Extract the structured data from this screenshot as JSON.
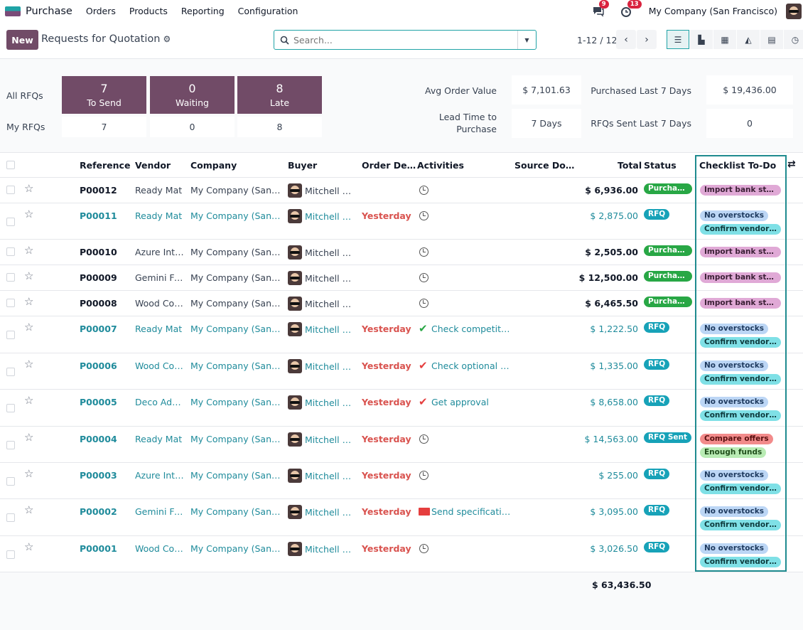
{
  "nav": {
    "app": "Purchase",
    "menus": [
      "Orders",
      "Products",
      "Reporting",
      "Configuration"
    ],
    "messages_count": "9",
    "activities_count": "13",
    "company": "My Company (San Francisco)"
  },
  "cp": {
    "new_label": "New",
    "title": "Requests for Quotation",
    "search_placeholder": "Search...",
    "pager": "1-12 / 12"
  },
  "dash": {
    "all_label": "All RFQs",
    "my_label": "My RFQs",
    "tiles": [
      {
        "n": "7",
        "label": "To Send",
        "mine": "7"
      },
      {
        "n": "0",
        "label": "Waiting",
        "mine": "0"
      },
      {
        "n": "8",
        "label": "Late",
        "mine": "8"
      }
    ],
    "avg_label": "Avg Order Value",
    "avg_value": "$ 7,101.63",
    "lead_label": "Lead Time to Purchase",
    "lead_value": "7 Days",
    "purch_label": "Purchased Last 7 Days",
    "purch_value": "$ 19,436.00",
    "sent_label": "RFQs Sent Last 7 Days",
    "sent_value": "0"
  },
  "columns": {
    "reference": "Reference",
    "vendor": "Vendor",
    "company": "Company",
    "buyer": "Buyer",
    "order_deadline": "Order De…",
    "activities": "Activities",
    "source": "Source Do…",
    "total": "Total",
    "status": "Status",
    "checklist": "Checklist To-Do"
  },
  "rows": [
    {
      "ref": "P00012",
      "vendor": "Ready Mat",
      "company": "My Company (San Fr…",
      "buyer": "Mitchell A…",
      "deadline": "",
      "activity": "",
      "total": "$ 6,936.00",
      "status": "Purchas…",
      "tags": [
        "Import bank state…"
      ]
    },
    {
      "ref": "P00011",
      "vendor": "Ready Mat",
      "company": "My Company (San Fr…",
      "buyer": "Mitchell A…",
      "deadline": "Yesterday",
      "activity": "",
      "total": "$ 2,875.00",
      "status": "RFQ",
      "tags": [
        "No overstocks",
        "Confirm vendor r…"
      ]
    },
    {
      "ref": "P00010",
      "vendor": "Azure Inte…",
      "company": "My Company (San Fr…",
      "buyer": "Mitchell A…",
      "deadline": "",
      "activity": "",
      "total": "$ 2,505.00",
      "status": "Purchas…",
      "tags": [
        "Import bank state…"
      ]
    },
    {
      "ref": "P00009",
      "vendor": "Gemini Fu…",
      "company": "My Company (San Fr…",
      "buyer": "Mitchell A…",
      "deadline": "",
      "activity": "",
      "total": "$ 12,500.00",
      "status": "Purchas…",
      "tags": [
        "Import bank state…"
      ]
    },
    {
      "ref": "P00008",
      "vendor": "Wood Cor…",
      "company": "My Company (San Fr…",
      "buyer": "Mitchell A…",
      "deadline": "",
      "activity": "",
      "total": "$ 6,465.50",
      "status": "Purchas…",
      "tags": [
        "Import bank state…"
      ]
    },
    {
      "ref": "P00007",
      "vendor": "Ready Mat",
      "company": "My Company (San Fr…",
      "buyer": "Mitchell A…",
      "deadline": "Yesterday",
      "activity": "Check competitors",
      "total": "$ 1,222.50",
      "status": "RFQ",
      "tags": [
        "No overstocks",
        "Confirm vendor r…"
      ]
    },
    {
      "ref": "P00006",
      "vendor": "Wood Cor…",
      "company": "My Company (San Fr…",
      "buyer": "Mitchell A…",
      "deadline": "Yesterday",
      "activity": "Check optional p…",
      "total": "$ 1,335.00",
      "status": "RFQ",
      "tags": [
        "No overstocks",
        "Confirm vendor r…"
      ]
    },
    {
      "ref": "P00005",
      "vendor": "Deco Addict",
      "company": "My Company (San Fr…",
      "buyer": "Mitchell A…",
      "deadline": "Yesterday",
      "activity": "Get approval",
      "total": "$ 8,658.00",
      "status": "RFQ",
      "tags": [
        "No overstocks",
        "Confirm vendor r…"
      ]
    },
    {
      "ref": "P00004",
      "vendor": "Ready Mat",
      "company": "My Company (San Fr…",
      "buyer": "Mitchell A…",
      "deadline": "Yesterday",
      "activity": "",
      "total": "$ 14,563.00",
      "status": "RFQ Sent",
      "tags": [
        "Compare offers",
        "Enough funds"
      ]
    },
    {
      "ref": "P00003",
      "vendor": "Azure Inte…",
      "company": "My Company (San Fr…",
      "buyer": "Mitchell A…",
      "deadline": "Yesterday",
      "activity": "",
      "total": "$ 255.00",
      "status": "RFQ",
      "tags": [
        "No overstocks",
        "Confirm vendor r…"
      ]
    },
    {
      "ref": "P00002",
      "vendor": "Gemini Fu…",
      "company": "My Company (San Fr…",
      "buyer": "Mitchell A…",
      "deadline": "Yesterday",
      "activity": "Send specifications",
      "total": "$ 3,095.00",
      "status": "RFQ",
      "tags": [
        "No overstocks",
        "Confirm vendor r…"
      ]
    },
    {
      "ref": "P00001",
      "vendor": "Wood Cor…",
      "company": "My Company (San Fr…",
      "buyer": "Mitchell A…",
      "deadline": "Yesterday",
      "activity": "",
      "total": "$ 3,026.50",
      "status": "RFQ",
      "tags": [
        "No overstocks",
        "Confirm vendor r…"
      ]
    }
  ],
  "grand_total": "$ 63,436.50"
}
